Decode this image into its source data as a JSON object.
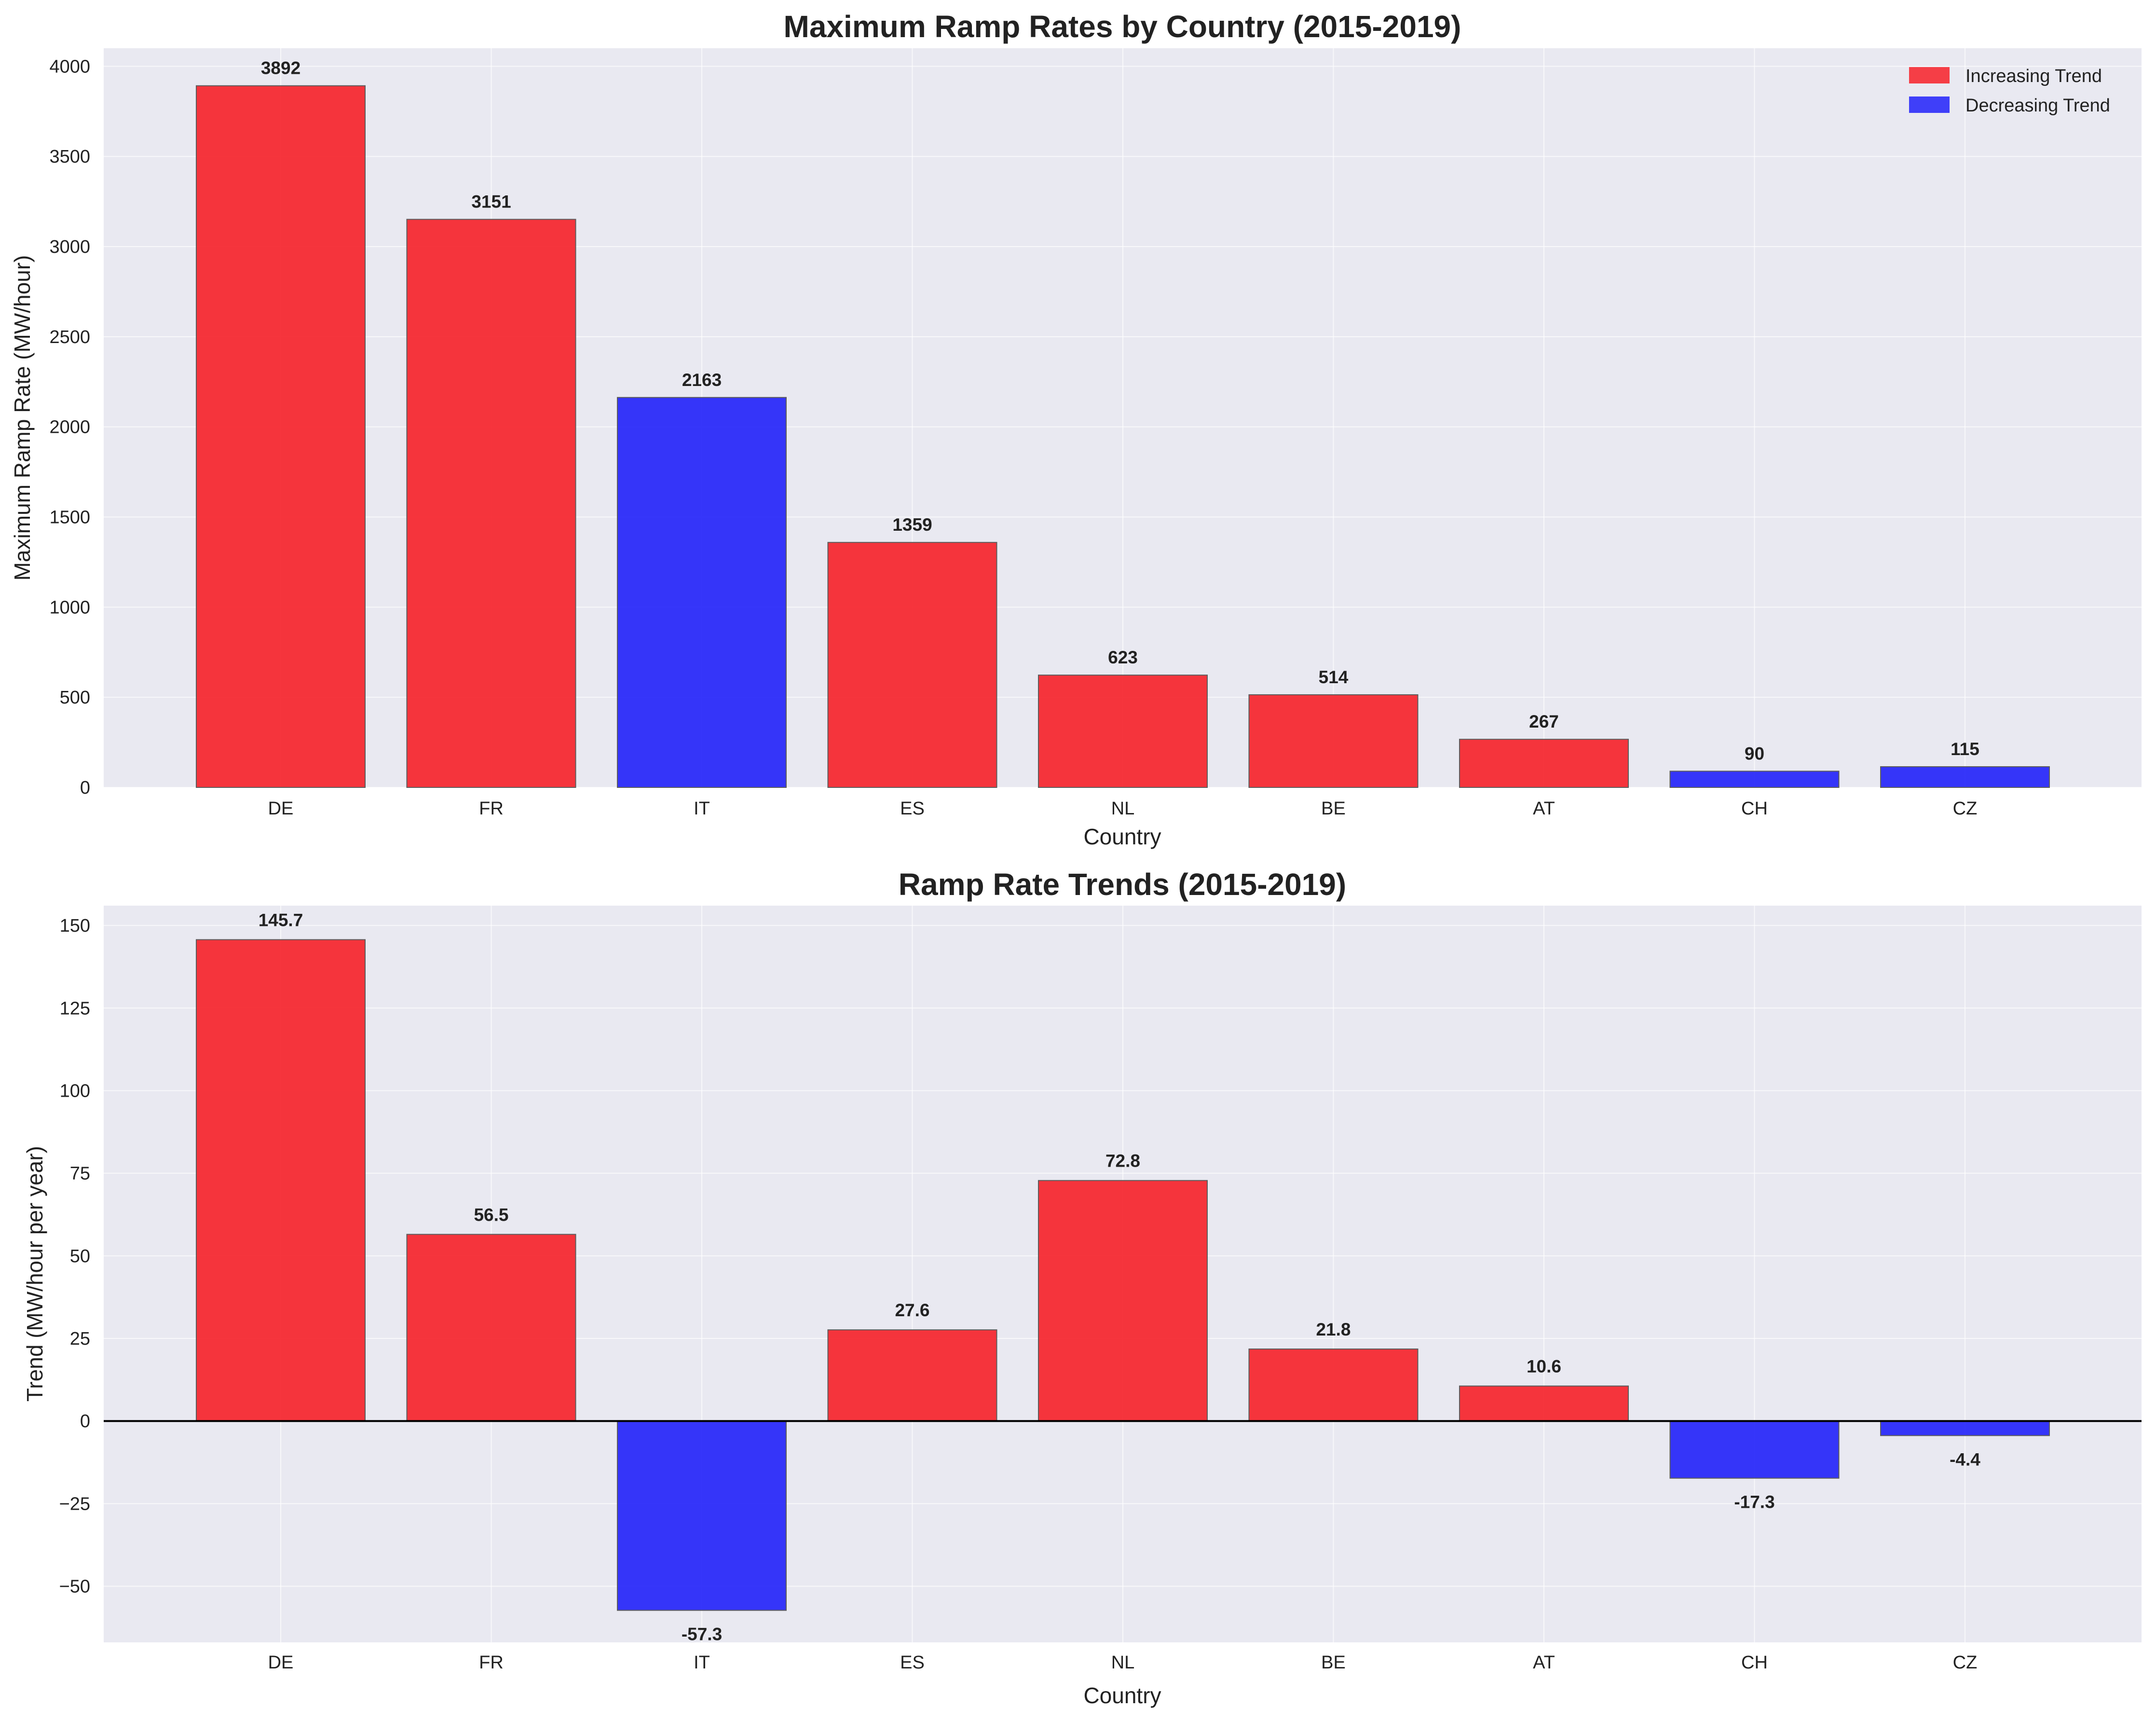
{
  "chart_data": [
    {
      "type": "bar",
      "title": "Maximum Ramp Rates by Country (2015-2019)",
      "xlabel": "Country",
      "ylabel": "Maximum Ramp Rate (MW/hour)",
      "categories": [
        "DE",
        "FR",
        "IT",
        "ES",
        "NL",
        "BE",
        "AT",
        "CH",
        "CZ"
      ],
      "values": [
        3892,
        3151,
        2163,
        1359,
        623,
        514,
        267,
        90,
        115
      ],
      "value_labels": [
        "3892",
        "3151",
        "2163",
        "1359",
        "623",
        "514",
        "267",
        "90",
        "115"
      ],
      "trend": [
        "increasing",
        "increasing",
        "decreasing",
        "increasing",
        "increasing",
        "increasing",
        "increasing",
        "decreasing",
        "decreasing"
      ],
      "ylim": [
        0,
        4100
      ],
      "yticks": [
        0,
        500,
        1000,
        1500,
        2000,
        2500,
        3000,
        3500,
        4000
      ],
      "ytick_labels": [
        "0",
        "500",
        "1000",
        "1500",
        "2000",
        "2500",
        "3000",
        "3500",
        "4000"
      ],
      "grid": true,
      "legend": {
        "placement": "top-right",
        "entries": [
          {
            "label": "Increasing Trend",
            "color": "#f62b33"
          },
          {
            "label": "Decreasing Trend",
            "color": "#2c2cfa"
          }
        ]
      }
    },
    {
      "type": "bar",
      "title": "Ramp Rate Trends (2015-2019)",
      "xlabel": "Country",
      "ylabel": "Trend (MW/hour per year)",
      "categories": [
        "DE",
        "FR",
        "IT",
        "ES",
        "NL",
        "BE",
        "AT",
        "CH",
        "CZ"
      ],
      "values": [
        145.7,
        56.5,
        -57.3,
        27.6,
        72.8,
        21.8,
        10.6,
        -17.3,
        -4.4
      ],
      "value_labels": [
        "145.7",
        "56.5",
        "-57.3",
        "27.6",
        "72.8",
        "21.8",
        "10.6",
        "-17.3",
        "-4.4"
      ],
      "ylim": [
        -67,
        156
      ],
      "yticks": [
        -50,
        -25,
        0,
        25,
        50,
        75,
        100,
        125,
        150
      ],
      "ytick_labels": [
        "−50",
        "−25",
        "0",
        "25",
        "50",
        "75",
        "100",
        "125",
        "150"
      ],
      "zero_line": true,
      "grid": true
    }
  ],
  "colors": {
    "increasing": "#f62b33",
    "decreasing": "#2c2cfa",
    "plot_background": "#e9e9f1"
  }
}
